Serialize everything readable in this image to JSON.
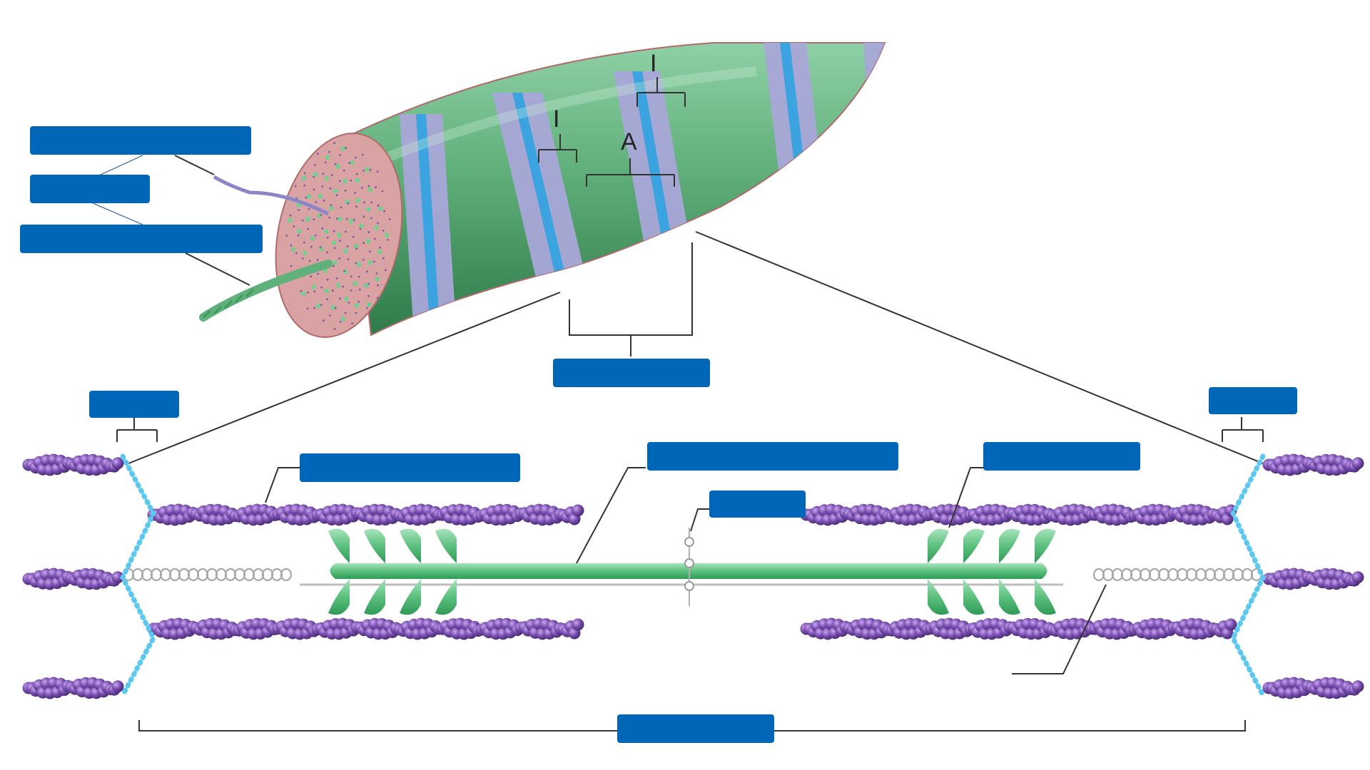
{
  "band_letters": {
    "i_band_left": "I",
    "i_band_top": "I",
    "a_band": "A"
  },
  "label_boxes": [
    "myofibril-label-1",
    "myofibril-label-2",
    "myofibril-label-3",
    "sarcomere-label-top",
    "z-disc-left-label",
    "z-disc-right-label",
    "thin-filament-label",
    "thick-filament-label",
    "m-line-label",
    "myosin-head-label",
    "sarcomere-bottom-label"
  ],
  "colors": {
    "label_fill": "#0066b8",
    "fiber_green": "#4f9e6a",
    "fiber_band_lavender": "#a9a6d8",
    "fiber_band_blue": "#3aa3e0",
    "fiber_end_pink": "#d9a3a3",
    "actin_purple": "#7a4fb0",
    "myosin_green": "#5cc07e",
    "z_disc_blue": "#5bc8f0",
    "titin_gray": "#bdbdbd"
  }
}
